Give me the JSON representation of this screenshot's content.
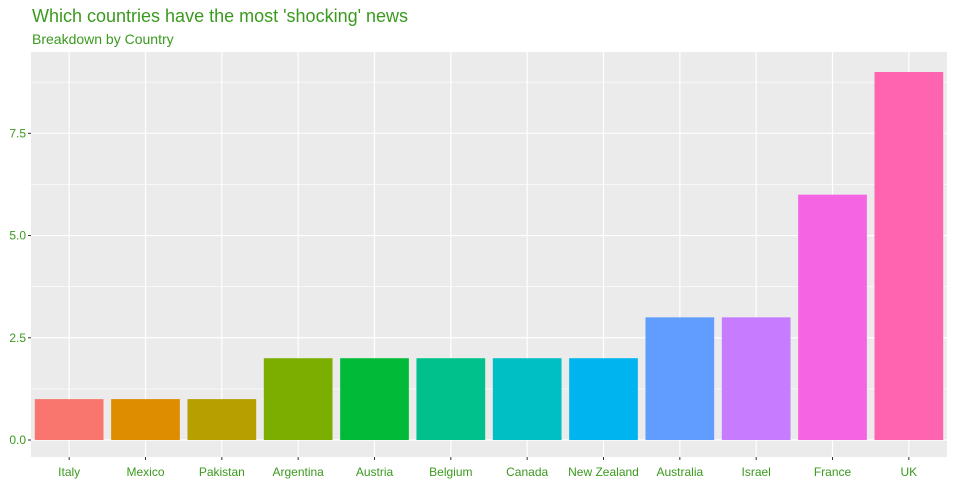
{
  "chart_data": {
    "type": "bar",
    "title": "Which countries have the most 'shocking' news",
    "subtitle": "Breakdown by Country",
    "xlabel": "",
    "ylabel": "",
    "categories": [
      "Italy",
      "Mexico",
      "Pakistan",
      "Argentina",
      "Austria",
      "Belgium",
      "Canada",
      "New Zealand",
      "Australia",
      "Israel",
      "France",
      "UK"
    ],
    "values": [
      1,
      1,
      1,
      2,
      2,
      2,
      2,
      2,
      3,
      3,
      6,
      9
    ],
    "colors": [
      "#f8766d",
      "#de8c00",
      "#b79f00",
      "#7cae00",
      "#00ba38",
      "#00c08b",
      "#00bfc4",
      "#00b4f0",
      "#619cff",
      "#c77cff",
      "#f564e3",
      "#ff64b0"
    ],
    "yticks": [
      0,
      2.5,
      5,
      7.5
    ],
    "ytick_labels": [
      "0.0",
      "2.5",
      "5.0",
      "7.5"
    ],
    "ylim": [
      0,
      9.45
    ],
    "grid": true,
    "legend": "none",
    "panel_color": "#ebebeb",
    "text_color": "#3a9a1e"
  }
}
